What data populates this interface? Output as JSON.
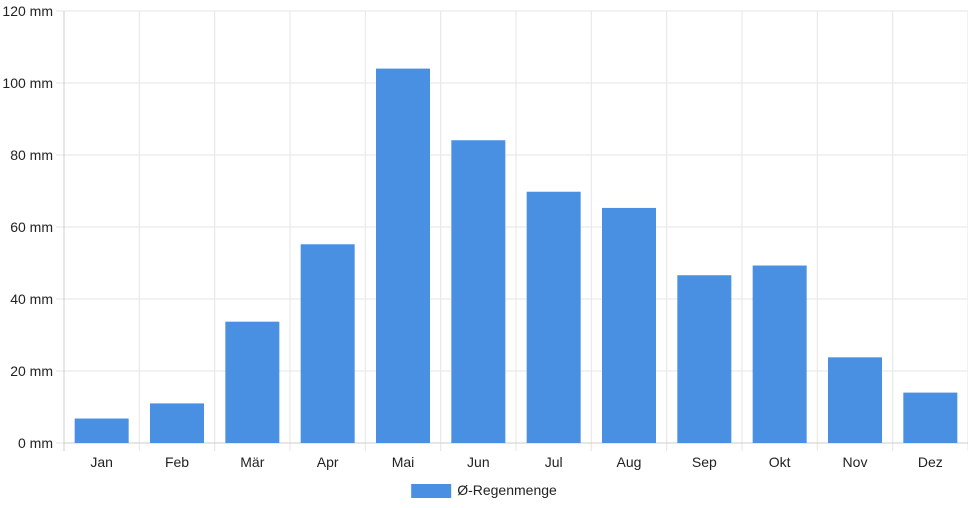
{
  "chart_data": {
    "type": "bar",
    "categories": [
      "Jan",
      "Feb",
      "Mär",
      "Apr",
      "Mai",
      "Jun",
      "Jul",
      "Aug",
      "Sep",
      "Okt",
      "Nov",
      "Dez"
    ],
    "series": [
      {
        "name": "Ø-Regenmenge",
        "values": [
          6.8,
          11,
          33.7,
          55.2,
          104,
          84.1,
          69.8,
          65.3,
          46.6,
          49.3,
          23.8,
          14
        ]
      }
    ],
    "y_ticks": [
      0,
      20,
      40,
      60,
      80,
      100,
      120
    ],
    "y_unit": "mm",
    "ylim": [
      0,
      120
    ],
    "grid": true,
    "legend_position": "bottom-center",
    "colors": {
      "bar": "#4a90e2",
      "grid": "#e5e5e5",
      "axis": "#cccccc"
    }
  }
}
